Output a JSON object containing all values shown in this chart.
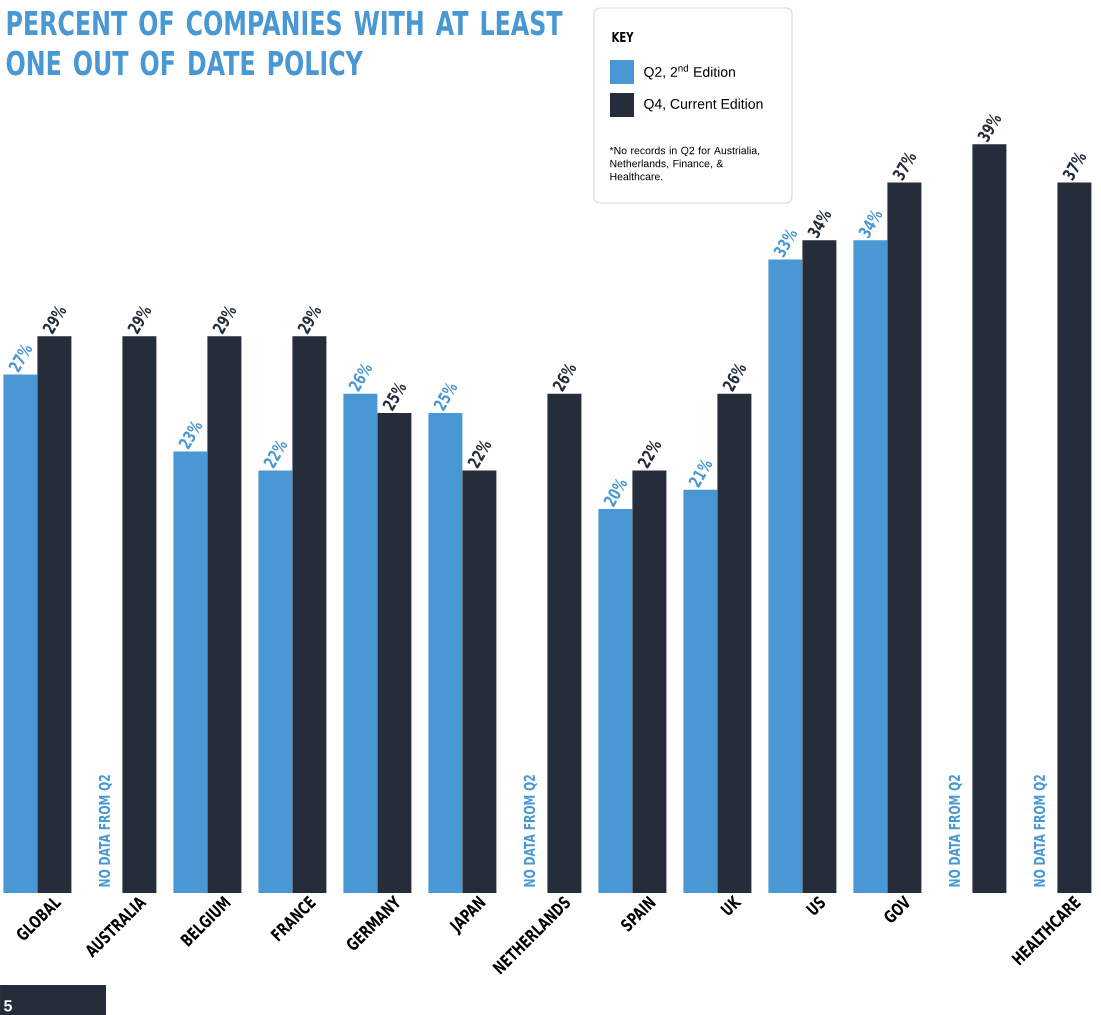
{
  "chart_data": {
    "type": "bar",
    "title": "PERCENT OF COMPANIES WITH AT LEAST ONE OUT OF DATE POLICY",
    "categories": [
      "GLOBAL",
      "AUSTRALIA",
      "BELGIUM",
      "FRANCE",
      "GERMANY",
      "JAPAN",
      "NETHERLANDS",
      "SPAIN",
      "UK",
      "US",
      "GOV",
      null,
      "HEALTHCARE"
    ],
    "legend_title": "KEY",
    "legend": "top right",
    "series": [
      {
        "name": "Q2, 2$^{nd}$ Edition",
        "color": "#4a98d3",
        "values": [
          27,
          null,
          23,
          22,
          26,
          25,
          null,
          20,
          21,
          33,
          34,
          null,
          null
        ],
        "value_labels": [
          "27%",
          null,
          "23%",
          "22%",
          "26%",
          "25%",
          null,
          "20%",
          "21%",
          "33%",
          "34%",
          null,
          null
        ]
      },
      {
        "name": "Q4, Current Edition",
        "color": "#262d3a",
        "values": [
          29,
          29,
          29,
          29,
          25,
          22,
          26,
          22,
          26,
          34,
          37,
          39,
          37
        ],
        "value_labels": [
          "29%",
          "29%",
          "29%",
          "29%",
          "25%",
          "22%",
          "26%",
          "22%",
          "26%",
          "34%",
          "37%",
          "39%",
          "37%"
        ]
      }
    ],
    "annotations": [
      "NO DATA FROM Q2",
      "NO DATA FROM Q2",
      "NO DATA FROM Q2",
      "NO DATA FROM Q2",
      "*No records in Q2 for Austrialia, Netherlands, Finance, & Healthcare.",
      "5"
    ]
  }
}
